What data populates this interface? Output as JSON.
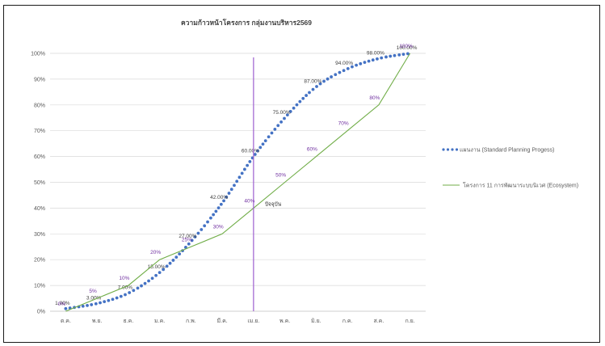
{
  "chart_data": {
    "type": "line",
    "title": "ความก้าวหน้าโครงการ กลุ่มงานบริหาร2569",
    "categories": [
      "ต.ค.",
      "พ.ย.",
      "ธ.ค.",
      "ม.ค.",
      "ก.พ.",
      "มี.ค.",
      "เม.ย.",
      "พ.ค.",
      "มิ.ย.",
      "ก.ค.",
      "ส.ค.",
      "ก.ย."
    ],
    "yticks": [
      "0%",
      "10%",
      "20%",
      "30%",
      "40%",
      "50%",
      "60%",
      "70%",
      "80%",
      "90%",
      "100%"
    ],
    "ylim": [
      0,
      100
    ],
    "grid": true,
    "legend_position": "right",
    "series": [
      {
        "name": "แผนงาน (Standard Planning Progess)",
        "style": "dotted",
        "color": "#4472C4",
        "values": [
          1,
          3,
          7,
          15,
          27,
          42,
          60,
          75,
          87,
          94,
          98,
          100
        ],
        "labels": [
          "1.00%",
          "3.00%",
          "7.00%",
          "15.00%",
          "27.00%",
          "42.00%",
          "60.00%",
          "75.00%",
          "87.00%",
          "94.00%",
          "98.00%",
          "100.00%"
        ],
        "label_color": "#404040"
      },
      {
        "name": "โครงการ 11 การพัฒนาระบบนิเวศ (Ecosystem)",
        "style": "solid",
        "color": "#70AD47",
        "values": [
          0,
          5,
          10,
          20,
          25,
          30,
          40,
          50,
          60,
          70,
          80,
          100
        ],
        "labels": [
          "0%",
          "5%",
          "10%",
          "20%",
          "25%",
          "30%",
          "40%",
          "50%",
          "60%",
          "70%",
          "80%",
          "100%"
        ],
        "label_color": "#7030A0"
      }
    ],
    "current_marker": {
      "category": "เม.ย.",
      "label": "ปัจจุบัน",
      "color": "#9E5FD0"
    }
  }
}
